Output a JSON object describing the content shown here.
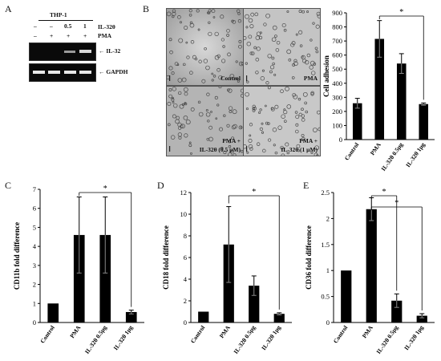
{
  "panels": {
    "A": "A",
    "B": "B",
    "C": "C",
    "D": "D",
    "E": "E"
  },
  "gel": {
    "cell_line": "THP-1",
    "row1_label": "IL-32θ",
    "row1_values": [
      "–",
      "–",
      "0.5",
      "1"
    ],
    "row2_label": "PMA",
    "row2_values": [
      "–",
      "+",
      "+",
      "+"
    ],
    "band_labels": [
      "← IL-32",
      "← GAPDH"
    ]
  },
  "micrographs": {
    "labels": [
      "Control",
      "PMA",
      "PMA +",
      "IL-32θ (0.5 μM)",
      "PMA +",
      "IL-32θ (1 μM)"
    ]
  },
  "chart_data": [
    {
      "id": "B",
      "type": "bar",
      "categories": [
        "Control",
        "PMA",
        "IL-32θ 0.5μg",
        "IL-32θ 1μg"
      ],
      "values": [
        258,
        715,
        540,
        252
      ],
      "errors": [
        35,
        130,
        70,
        8
      ],
      "ylabel": "Cell adhesion",
      "ylim": [
        0,
        900
      ],
      "yticks": [
        0,
        100,
        200,
        300,
        400,
        500,
        600,
        700,
        800,
        900
      ],
      "significance": [
        {
          "from": 1,
          "to": 3,
          "label": "*"
        }
      ]
    },
    {
      "id": "C",
      "type": "bar",
      "categories": [
        "Control",
        "PMA",
        "IL-32θ 0.5μg",
        "IL-32θ 1μg"
      ],
      "values": [
        1.0,
        4.6,
        4.6,
        0.55
      ],
      "errors": [
        0,
        2.0,
        2.0,
        0.1
      ],
      "ylabel": "CD11b fold difference",
      "ylim": [
        0,
        7
      ],
      "yticks": [
        0,
        1,
        2,
        3,
        4,
        5,
        6,
        7
      ],
      "significance": [
        {
          "from": 1,
          "to": 3,
          "label": "*"
        }
      ]
    },
    {
      "id": "D",
      "type": "bar",
      "categories": [
        "Control",
        "PMA",
        "IL-32θ 0.5μg",
        "IL-32θ 1μg"
      ],
      "values": [
        1.0,
        7.2,
        3.4,
        0.8
      ],
      "errors": [
        0,
        3.5,
        0.9,
        0.1
      ],
      "ylabel": "CD18 fold difference",
      "ylim": [
        0,
        12
      ],
      "yticks": [
        0,
        2,
        4,
        6,
        8,
        10,
        12
      ],
      "significance": [
        {
          "from": 1,
          "to": 3,
          "label": "*"
        }
      ]
    },
    {
      "id": "E",
      "type": "bar",
      "categories": [
        "Control",
        "PMA",
        "IL-32θ 0.5μg",
        "IL-32θ 1μg"
      ],
      "values": [
        1.0,
        2.18,
        0.42,
        0.13
      ],
      "errors": [
        0,
        0.22,
        0.13,
        0.04
      ],
      "ylabel": "CD36 fold difference",
      "ylim": [
        0,
        2.5
      ],
      "yticks": [
        0,
        0.5,
        1,
        1.5,
        2,
        2.5
      ],
      "significance": [
        {
          "from": 1,
          "to": 2,
          "label": "*"
        },
        {
          "from": 1,
          "to": 3,
          "label": "*"
        }
      ]
    }
  ]
}
